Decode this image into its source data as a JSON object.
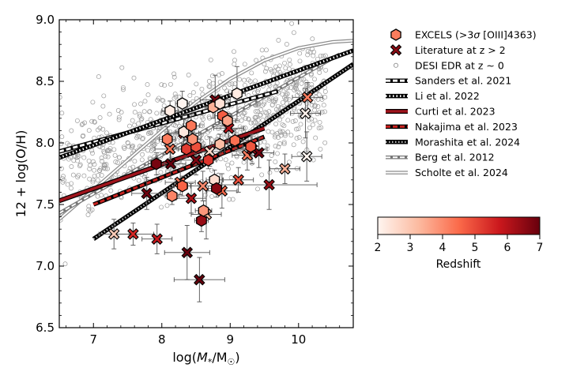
{
  "chart_data": {
    "type": "scatter",
    "xlabel_base": "log(",
    "xlabel_var": "M",
    "xlabel_sub": "*",
    "xlabel_unit": "/M",
    "xlabel_unit_sub": "☉",
    "xlabel_close": ")",
    "ylabel": "12 + log(O/H)",
    "xlim": [
      6.5,
      10.8
    ],
    "ylim": [
      6.5,
      9.0
    ],
    "xticks": [
      7,
      8,
      9,
      10
    ],
    "yticks": [
      6.5,
      7.0,
      7.5,
      8.0,
      8.5,
      9.0
    ],
    "xtick_labels": [
      "7",
      "8",
      "9",
      "10"
    ],
    "ytick_labels": [
      "6.5",
      "7.0",
      "7.5",
      "8.0",
      "8.5",
      "9.0"
    ],
    "grid": false,
    "legend_position": "right",
    "legend": [
      {
        "label": "EXCELS (>3σ [OIII]4363)",
        "marker": "hexagon",
        "color": "#fb7d5d"
      },
      {
        "label": "Literature at z > 2",
        "marker": "x",
        "color": "#8b0b14"
      },
      {
        "label": "DESI EDR at z ∼ 0",
        "marker": "circle",
        "color": "#888888"
      },
      {
        "label": "Sanders et al. 2021",
        "line": "dash-white",
        "color": "#ffffff"
      },
      {
        "label": "Li et al. 2022",
        "line": "dot-white",
        "color": "#ffffff"
      },
      {
        "label": "Curti et al. 2023",
        "line": "solid",
        "color": "#9f141c"
      },
      {
        "label": "Nakajima et al. 2023",
        "line": "dash",
        "color": "#c7221f"
      },
      {
        "label": "Morashita et al. 2024",
        "line": "dot",
        "color": "#a8a8a8"
      },
      {
        "label": "Berg et al. 2012",
        "line": "dash-gray",
        "color": "#999999"
      },
      {
        "label": "Scholte et al. 2024",
        "line": "solid-gray",
        "color": "#aaaaaa"
      }
    ],
    "colorbar": {
      "label": "Redshift",
      "range": [
        2,
        7
      ],
      "ticks": [
        2,
        3,
        4,
        5,
        6,
        7
      ],
      "tick_labels": [
        "2",
        "3",
        "4",
        "5",
        "6",
        "7"
      ],
      "colormap": "Reds",
      "stops": [
        "#fff5f0",
        "#fcbba1",
        "#fb6a4a",
        "#cb181d",
        "#67000d"
      ]
    },
    "relations": [
      {
        "name": "Sanders et al. 2021",
        "x": [
          6.5,
          9.7
        ],
        "y": [
          7.93,
          8.42
        ],
        "style": "white-dash"
      },
      {
        "name": "Li et al. 2022",
        "x": [
          6.5,
          10.8
        ],
        "y": [
          7.88,
          8.75
        ],
        "style": "white-dot"
      },
      {
        "name": "Curti et al. 2023",
        "x": [
          6.5,
          9.5
        ],
        "y": [
          7.53,
          8.12
        ],
        "style": "red-solid"
      },
      {
        "name": "Nakajima et al. 2023",
        "x": [
          7.0,
          9.5
        ],
        "y": [
          7.5,
          8.05
        ],
        "style": "red-dash"
      },
      {
        "name": "Morashita et al. 2024",
        "x": [
          7.0,
          10.8
        ],
        "y": [
          7.22,
          8.64
        ],
        "style": "dark-dot"
      },
      {
        "name": "Berg et al. 2012",
        "x": [
          6.5,
          10.6
        ],
        "y": [
          7.43,
          8.72
        ],
        "style": "gray-dash"
      },
      {
        "name": "Scholte et al. 2024",
        "x": [
          6.5,
          7.0,
          7.5,
          8.0,
          8.5,
          9.0,
          9.5,
          10.0,
          10.5,
          10.8
        ],
        "y": [
          7.38,
          7.62,
          7.86,
          8.1,
          8.33,
          8.52,
          8.67,
          8.77,
          8.82,
          8.83
        ],
        "style": "gray-solid"
      }
    ],
    "excels": [
      {
        "x": 7.92,
        "y": 7.83,
        "z": 6.8,
        "xerr": [
          0.12,
          0.12
        ],
        "yerr": [
          0.09,
          0.09
        ]
      },
      {
        "x": 8.08,
        "y": 8.03,
        "z": 4.2,
        "xerr": [
          0.12,
          0.12
        ],
        "yerr": [
          0.1,
          0.1
        ]
      },
      {
        "x": 8.15,
        "y": 7.57,
        "z": 4.1,
        "xerr": [
          0.1,
          0.1
        ],
        "yerr": [
          0.07,
          0.07
        ]
      },
      {
        "x": 8.12,
        "y": 8.26,
        "z": 2.2,
        "xerr": [
          0.12,
          0.12
        ],
        "yerr": [
          0.08,
          0.08
        ]
      },
      {
        "x": 8.3,
        "y": 7.65,
        "z": 4.6,
        "xerr": [
          0.12,
          0.12
        ],
        "yerr": [
          0.08,
          0.08
        ]
      },
      {
        "x": 8.3,
        "y": 8.32,
        "z": 2.0,
        "xerr": [
          0.1,
          0.1
        ],
        "yerr": [
          0.1,
          0.1
        ]
      },
      {
        "x": 8.36,
        "y": 7.95,
        "z": 5.2,
        "xerr": [
          0.12,
          0.12
        ],
        "yerr": [
          0.07,
          0.07
        ]
      },
      {
        "x": 8.32,
        "y": 8.09,
        "z": 2.3,
        "xerr": [
          0.12,
          0.12
        ],
        "yerr": [
          0.1,
          0.1
        ]
      },
      {
        "x": 8.5,
        "y": 7.97,
        "z": 4.9,
        "xerr": [
          0.12,
          0.12
        ],
        "yerr": [
          0.08,
          0.08
        ]
      },
      {
        "x": 8.43,
        "y": 8.14,
        "z": 4.3,
        "xerr": [
          0.12,
          0.12
        ],
        "yerr": [
          0.09,
          0.09
        ]
      },
      {
        "x": 8.45,
        "y": 8.03,
        "z": 3.9,
        "xerr": [
          0.12,
          0.12
        ],
        "yerr": [
          0.06,
          0.06
        ]
      },
      {
        "x": 8.58,
        "y": 7.37,
        "z": 6.4,
        "xerr": [
          0.1,
          0.1
        ],
        "yerr": [
          0.09,
          0.09
        ]
      },
      {
        "x": 8.61,
        "y": 7.45,
        "z": 3.8,
        "xerr": [
          0.12,
          0.12
        ],
        "yerr": [
          0.08,
          0.08
        ]
      },
      {
        "x": 8.68,
        "y": 7.86,
        "z": 5.3,
        "xerr": [
          0.12,
          0.12
        ],
        "yerr": [
          0.07,
          0.07
        ]
      },
      {
        "x": 8.75,
        "y": 8.29,
        "z": 3.4,
        "xerr": [
          0.12,
          0.12
        ],
        "yerr": [
          0.09,
          0.09
        ]
      },
      {
        "x": 8.77,
        "y": 7.7,
        "z": 2.5,
        "xerr": [
          0.12,
          0.12
        ],
        "yerr": [
          0.08,
          0.08
        ]
      },
      {
        "x": 8.8,
        "y": 7.63,
        "z": 6.6,
        "xerr": [
          0.12,
          0.12
        ],
        "yerr": [
          0.07,
          0.07
        ]
      },
      {
        "x": 8.85,
        "y": 7.99,
        "z": 3.2,
        "xerr": [
          0.12,
          0.12
        ],
        "yerr": [
          0.08,
          0.08
        ]
      },
      {
        "x": 8.85,
        "y": 8.32,
        "z": 2.4,
        "xerr": [
          0.12,
          0.12
        ],
        "yerr": [
          0.07,
          0.07
        ]
      },
      {
        "x": 8.89,
        "y": 8.22,
        "z": 4.7,
        "xerr": [
          0.12,
          0.12
        ],
        "yerr": [
          0.08,
          0.08
        ]
      },
      {
        "x": 8.96,
        "y": 8.18,
        "z": 3.6,
        "xerr": [
          0.12,
          0.12
        ],
        "yerr": [
          0.06,
          0.06
        ]
      },
      {
        "x": 9.07,
        "y": 8.02,
        "z": 4.4,
        "xerr": [
          0.12,
          0.12
        ],
        "yerr": [
          0.09,
          0.09
        ]
      },
      {
        "x": 9.1,
        "y": 8.4,
        "z": 2.2,
        "xerr": [
          0.12,
          0.12
        ],
        "yerr": [
          0.22,
          0.22
        ]
      },
      {
        "x": 9.3,
        "y": 7.97,
        "z": 4.8,
        "xerr": [
          0.12,
          0.12
        ],
        "yerr": [
          0.1,
          0.1
        ]
      }
    ],
    "literature": [
      {
        "x": 7.3,
        "y": 7.26,
        "z": 2.9,
        "xerr": [
          0.22,
          0.22
        ],
        "yerr": [
          0.12,
          0.12
        ]
      },
      {
        "x": 7.58,
        "y": 7.26,
        "z": 5.5,
        "xerr": [
          0.3,
          0.3
        ],
        "yerr": [
          0.09,
          0.09
        ]
      },
      {
        "x": 7.78,
        "y": 7.59,
        "z": 6.9,
        "xerr": [
          0.22,
          0.22
        ],
        "yerr": [
          0.13,
          0.13
        ]
      },
      {
        "x": 7.93,
        "y": 7.22,
        "z": 5.8,
        "xerr": [
          0.22,
          0.22
        ],
        "yerr": [
          0.12,
          0.12
        ]
      },
      {
        "x": 8.12,
        "y": 7.95,
        "z": 4.4,
        "xerr": [
          0.22,
          0.22
        ],
        "yerr": [
          0.12,
          0.12
        ]
      },
      {
        "x": 8.13,
        "y": 7.83,
        "z": 7.0,
        "xerr": [
          0.22,
          0.22
        ],
        "yerr": [
          0.12,
          0.12
        ]
      },
      {
        "x": 8.27,
        "y": 7.68,
        "z": 4.3,
        "xerr": [
          0.22,
          0.22
        ],
        "yerr": [
          0.1,
          0.1
        ]
      },
      {
        "x": 8.32,
        "y": 8.08,
        "z": 5.4,
        "xerr": [
          0.22,
          0.22
        ],
        "yerr": [
          0.12,
          0.12
        ]
      },
      {
        "x": 8.37,
        "y": 7.11,
        "z": 7.0,
        "xerr": [
          0.33,
          0.33
        ],
        "yerr": [
          0.22,
          0.22
        ]
      },
      {
        "x": 8.43,
        "y": 7.55,
        "z": 6.1,
        "xerr": [
          0.22,
          0.22
        ],
        "yerr": [
          0.12,
          0.12
        ]
      },
      {
        "x": 8.5,
        "y": 7.86,
        "z": 6.7,
        "xerr": [
          0.22,
          0.22
        ],
        "yerr": [
          0.12,
          0.12
        ]
      },
      {
        "x": 8.55,
        "y": 6.89,
        "z": 7.0,
        "xerr": [
          0.37,
          0.37
        ],
        "yerr": [
          0.18,
          0.18
        ]
      },
      {
        "x": 8.6,
        "y": 7.65,
        "z": 4.0,
        "xerr": [
          0.22,
          0.22
        ],
        "yerr": [
          0.12,
          0.12
        ]
      },
      {
        "x": 8.65,
        "y": 7.42,
        "z": 3.3,
        "xerr": [
          0.22,
          0.22
        ],
        "yerr": [
          0.2,
          0.2
        ]
      },
      {
        "x": 8.7,
        "y": 7.93,
        "z": 2.6,
        "xerr": [
          0.22,
          0.22
        ],
        "yerr": [
          0.12,
          0.12
        ]
      },
      {
        "x": 8.78,
        "y": 8.35,
        "z": 6.8,
        "xerr": [
          0.22,
          0.22
        ],
        "yerr": [
          0.2,
          0.2
        ]
      },
      {
        "x": 8.88,
        "y": 7.61,
        "z": 4.5,
        "xerr": [
          0.22,
          0.22
        ],
        "yerr": [
          0.14,
          0.14
        ]
      },
      {
        "x": 8.98,
        "y": 8.12,
        "z": 6.0,
        "xerr": [
          0.22,
          0.22
        ],
        "yerr": [
          0.12,
          0.12
        ]
      },
      {
        "x": 9.12,
        "y": 7.7,
        "z": 4.9,
        "xerr": [
          0.22,
          0.22
        ],
        "yerr": [
          0.1,
          0.1
        ]
      },
      {
        "x": 9.25,
        "y": 7.9,
        "z": 4.2,
        "xerr": [
          0.22,
          0.22
        ],
        "yerr": [
          0.12,
          0.12
        ]
      },
      {
        "x": 9.32,
        "y": 7.95,
        "z": 6.3,
        "xerr": [
          0.22,
          0.22
        ],
        "yerr": [
          0.12,
          0.12
        ]
      },
      {
        "x": 9.42,
        "y": 7.92,
        "z": 6.9,
        "xerr": [
          0.22,
          0.22
        ],
        "yerr": [
          0.12,
          0.12
        ]
      },
      {
        "x": 9.57,
        "y": 7.66,
        "z": 6.4,
        "xerr": [
          0.7,
          0.7
        ],
        "yerr": [
          0.2,
          0.2
        ]
      },
      {
        "x": 9.8,
        "y": 7.79,
        "z": 3.4,
        "xerr": [
          0.22,
          0.22
        ],
        "yerr": [
          0.12,
          0.12
        ]
      },
      {
        "x": 10.1,
        "y": 8.24,
        "z": 2.1,
        "xerr": [
          0.22,
          0.22
        ],
        "yerr": [
          0.2,
          0.2
        ]
      },
      {
        "x": 10.12,
        "y": 7.89,
        "z": 2.0,
        "xerr": [
          0.22,
          0.22
        ],
        "yerr": [
          0.2,
          0.2
        ]
      },
      {
        "x": 10.13,
        "y": 8.37,
        "z": 4.2,
        "xerr": [
          0.22,
          0.22
        ],
        "yerr": [
          0.12,
          0.12
        ]
      }
    ],
    "desi_cloud": {
      "n": 900,
      "x_range": [
        6.5,
        10.4
      ],
      "trend_y_at_7": 7.85,
      "trend_slope": 0.16,
      "scatter": 0.22
    }
  }
}
